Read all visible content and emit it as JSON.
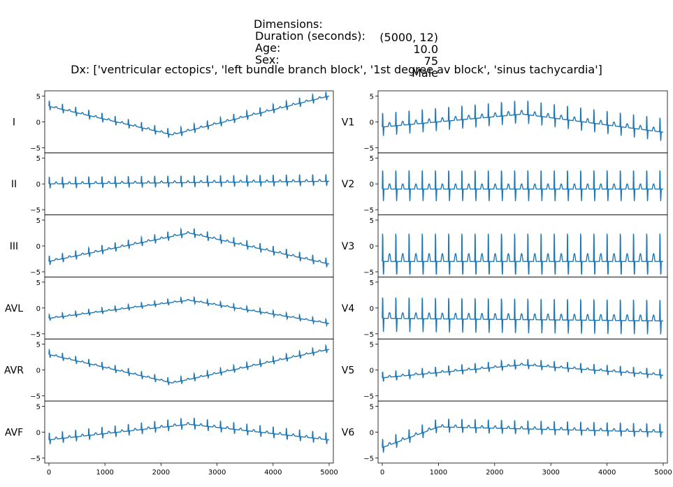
{
  "header": {
    "rows": [
      {
        "key": "Dimensions:",
        "value": "(5000, 12)"
      },
      {
        "key": "Duration (seconds):",
        "value": "10.0"
      },
      {
        "key": "Age:",
        "value": "75"
      },
      {
        "key": "Sex:",
        "value": "Male"
      }
    ],
    "dx": "Dx: ['ventricular ectopics', 'left bundle branch block', '1st degree av block', 'sinus tachycardia']"
  },
  "chart_data": {
    "type": "line",
    "x_range": [
      0,
      5000
    ],
    "x_ticks": [
      "0",
      "1000",
      "2000",
      "3000",
      "4000",
      "5000"
    ],
    "y_range": [
      -6,
      6
    ],
    "y_ticks": [
      "-5",
      "0",
      "5"
    ],
    "line_color": "#1f77b4",
    "columns": [
      {
        "leads": [
          "I",
          "II",
          "III",
          "AVL",
          "AVR",
          "AVF"
        ]
      },
      {
        "leads": [
          "V1",
          "V2",
          "V3",
          "V4",
          "V5",
          "V6"
        ]
      }
    ],
    "trends": {
      "I": {
        "base": [
          [
            0,
            3
          ],
          [
            2200,
            -2.5
          ],
          [
            5000,
            5
          ]
        ],
        "beat_amp": 1.2
      },
      "II": {
        "base": [
          [
            0,
            0
          ],
          [
            5000,
            0.5
          ]
        ],
        "beat_amp": 1.5
      },
      "III": {
        "base": [
          [
            0,
            -3
          ],
          [
            2500,
            2.5
          ],
          [
            5000,
            -3.5
          ]
        ],
        "beat_amp": 1.2
      },
      "AVL": {
        "base": [
          [
            0,
            -2
          ],
          [
            2500,
            1.5
          ],
          [
            5000,
            -3
          ]
        ],
        "beat_amp": 0.8
      },
      "AVR": {
        "base": [
          [
            0,
            3
          ],
          [
            2200,
            -2.5
          ],
          [
            5000,
            4
          ]
        ],
        "beat_amp": 1.0
      },
      "AVF": {
        "base": [
          [
            0,
            -1.5
          ],
          [
            2500,
            1.5
          ],
          [
            5000,
            -1.5
          ]
        ],
        "beat_amp": 1.5
      },
      "V1": {
        "base": [
          [
            0,
            -1
          ],
          [
            2500,
            1.5
          ],
          [
            5000,
            -2
          ]
        ],
        "beat_amp": 3.0
      },
      "V2": {
        "base": [
          [
            0,
            -1
          ],
          [
            5000,
            -1
          ]
        ],
        "beat_amp": 4.0
      },
      "V3": {
        "base": [
          [
            0,
            -3
          ],
          [
            5000,
            -3
          ]
        ],
        "beat_amp": 6.0
      },
      "V4": {
        "base": [
          [
            0,
            -2
          ],
          [
            5000,
            -2.5
          ]
        ],
        "beat_amp": 4.5
      },
      "V5": {
        "base": [
          [
            0,
            -1.5
          ],
          [
            2500,
            1
          ],
          [
            5000,
            -1
          ]
        ],
        "beat_amp": 1.3
      },
      "V6": {
        "base": [
          [
            0,
            -3
          ],
          [
            1000,
            1
          ],
          [
            5000,
            0
          ]
        ],
        "beat_amp": 1.8
      }
    },
    "beat_period": 235
  }
}
